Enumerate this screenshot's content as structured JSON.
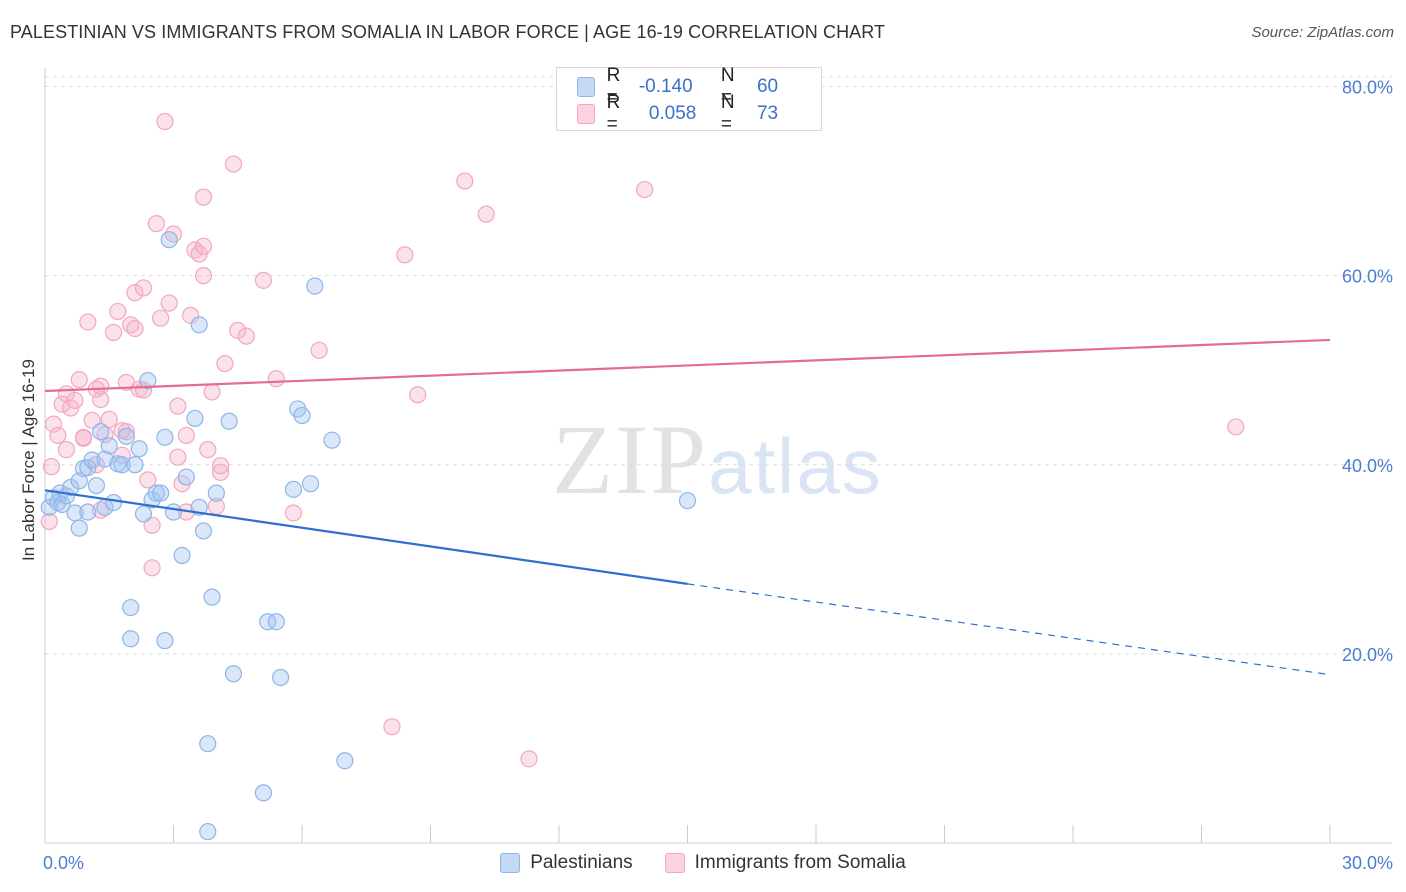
{
  "title": "PALESTINIAN VS IMMIGRANTS FROM SOMALIA IN LABOR FORCE | AGE 16-19 CORRELATION CHART",
  "source": "Source: ZipAtlas.com",
  "watermark": {
    "zip": "ZIP",
    "atlas": "atlas"
  },
  "legend": {
    "rows": [
      {
        "r_label": "R =",
        "r_value": "-0.140",
        "n_label": "N =",
        "n_value": "60",
        "color": "#8fb5ea"
      },
      {
        "r_label": "R =",
        "r_value": "0.058",
        "n_label": "N =",
        "n_value": "73",
        "color": "#f2a7be"
      }
    ]
  },
  "bottom_legend": [
    "Palestinians",
    "Immigrants from Somalia"
  ],
  "chart_data": {
    "type": "scatter",
    "ylabel": "In Labor Force | Age 16-19",
    "xlim": [
      0,
      30
    ],
    "ylim": [
      0,
      80
    ],
    "x_ticks": [
      "0.0%",
      "30.0%"
    ],
    "y_ticks": [
      "20.0%",
      "40.0%",
      "60.0%",
      "80.0%"
    ],
    "grid": true,
    "legend_position": "top-center",
    "series": [
      {
        "name": "Palestinians",
        "color": "#8fb5ea",
        "line_color": "#2e6fd1",
        "trend": {
          "x": [
            0,
            15
          ],
          "y": [
            37.3,
            27.4
          ],
          "dashed_to": [
            30,
            17.8
          ]
        },
        "points": [
          [
            0.1,
            35.5
          ],
          [
            0.2,
            36.5
          ],
          [
            0.3,
            36
          ],
          [
            0.35,
            37
          ],
          [
            0.4,
            35.8
          ],
          [
            0.5,
            36.7
          ],
          [
            0.6,
            37.6
          ],
          [
            0.7,
            34.9
          ],
          [
            0.8,
            38.3
          ],
          [
            0.8,
            33.3
          ],
          [
            0.9,
            39.6
          ],
          [
            1.0,
            39.7
          ],
          [
            1.1,
            40.5
          ],
          [
            1.2,
            37.8
          ],
          [
            1.3,
            43.5
          ],
          [
            1.4,
            40.6
          ],
          [
            1.4,
            35.5
          ],
          [
            1.5,
            42
          ],
          [
            1.6,
            36
          ],
          [
            1.7,
            40.1
          ],
          [
            1.8,
            40
          ],
          [
            1.9,
            43
          ],
          [
            2.0,
            24.9
          ],
          [
            2.1,
            40
          ],
          [
            2.2,
            41.7
          ],
          [
            2.3,
            34.8
          ],
          [
            2.4,
            48.9
          ],
          [
            2.5,
            36.3
          ],
          [
            2.6,
            37
          ],
          [
            2.7,
            37
          ],
          [
            2.8,
            21.4
          ],
          [
            2.8,
            42.9
          ],
          [
            2.9,
            63.8
          ],
          [
            3.0,
            35
          ],
          [
            3.2,
            30.4
          ],
          [
            3.3,
            38.7
          ],
          [
            3.5,
            44.9
          ],
          [
            3.6,
            35.5
          ],
          [
            3.6,
            54.8
          ],
          [
            3.7,
            33
          ],
          [
            3.8,
            1.2
          ],
          [
            3.8,
            10.5
          ],
          [
            3.9,
            26
          ],
          [
            4.0,
            37
          ],
          [
            4.3,
            44.6
          ],
          [
            4.4,
            17.9
          ],
          [
            5.1,
            5.3
          ],
          [
            5.2,
            23.4
          ],
          [
            5.4,
            23.4
          ],
          [
            5.5,
            17.5
          ],
          [
            5.8,
            37.4
          ],
          [
            5.9,
            45.9
          ],
          [
            6.0,
            45.2
          ],
          [
            6.2,
            38
          ],
          [
            6.3,
            58.9
          ],
          [
            6.7,
            42.6
          ],
          [
            7.0,
            8.7
          ],
          [
            15.0,
            36.2
          ],
          [
            2.0,
            21.6
          ],
          [
            1.0,
            35
          ]
        ]
      },
      {
        "name": "Immigrants from Somalia",
        "color": "#f2a7be",
        "line_color": "#e46b94",
        "trend": {
          "x": [
            0,
            30
          ],
          "y": [
            47.8,
            53.2
          ]
        },
        "points": [
          [
            0.1,
            34
          ],
          [
            0.15,
            39.8
          ],
          [
            0.2,
            44.3
          ],
          [
            0.3,
            43.1
          ],
          [
            0.4,
            46.4
          ],
          [
            0.5,
            41.6
          ],
          [
            0.5,
            47.5
          ],
          [
            0.6,
            46
          ],
          [
            0.7,
            46.8
          ],
          [
            0.8,
            49
          ],
          [
            0.9,
            42.8
          ],
          [
            1.0,
            55.1
          ],
          [
            1.1,
            44.7
          ],
          [
            1.2,
            40
          ],
          [
            1.3,
            48.3
          ],
          [
            1.3,
            46.9
          ],
          [
            1.4,
            43.2
          ],
          [
            1.5,
            44.8
          ],
          [
            1.6,
            54
          ],
          [
            1.7,
            56.2
          ],
          [
            1.8,
            41
          ],
          [
            1.9,
            48.7
          ],
          [
            1.9,
            43.5
          ],
          [
            2.0,
            54.8
          ],
          [
            2.1,
            54.4
          ],
          [
            2.1,
            58.2
          ],
          [
            2.2,
            48
          ],
          [
            2.3,
            58.7
          ],
          [
            2.4,
            38.4
          ],
          [
            2.5,
            33.6
          ],
          [
            2.5,
            29.1
          ],
          [
            2.6,
            65.5
          ],
          [
            2.7,
            55.5
          ],
          [
            2.8,
            76.3
          ],
          [
            2.9,
            57.1
          ],
          [
            3.0,
            64.4
          ],
          [
            3.1,
            46.2
          ],
          [
            3.1,
            40.8
          ],
          [
            3.2,
            38
          ],
          [
            3.3,
            35
          ],
          [
            3.3,
            43.1
          ],
          [
            3.4,
            55.8
          ],
          [
            3.5,
            62.7
          ],
          [
            3.6,
            62.3
          ],
          [
            3.7,
            63.1
          ],
          [
            3.7,
            68.3
          ],
          [
            3.7,
            60
          ],
          [
            3.8,
            41.6
          ],
          [
            3.9,
            47.7
          ],
          [
            4.0,
            35.6
          ],
          [
            4.1,
            39.2
          ],
          [
            4.1,
            39.9
          ],
          [
            4.2,
            50.7
          ],
          [
            4.4,
            71.8
          ],
          [
            4.5,
            54.2
          ],
          [
            4.7,
            53.6
          ],
          [
            5.1,
            59.5
          ],
          [
            5.4,
            49.1
          ],
          [
            5.8,
            34.9
          ],
          [
            6.4,
            52.1
          ],
          [
            8.1,
            12.3
          ],
          [
            8.4,
            62.2
          ],
          [
            8.7,
            47.4
          ],
          [
            9.8,
            70
          ],
          [
            10.3,
            66.5
          ],
          [
            11.3,
            8.9
          ],
          [
            14.0,
            69.1
          ],
          [
            27.8,
            44
          ],
          [
            1.8,
            43.6
          ],
          [
            2.3,
            47.9
          ],
          [
            0.9,
            42.9
          ],
          [
            1.2,
            48
          ],
          [
            1.3,
            35.2
          ]
        ]
      }
    ]
  }
}
